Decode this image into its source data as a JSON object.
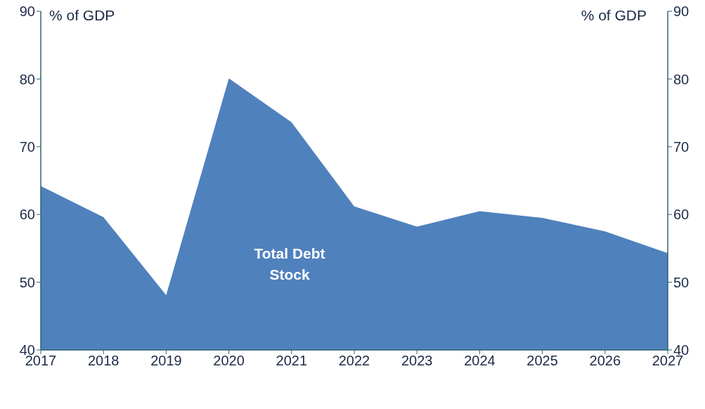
{
  "chart_data": {
    "type": "area",
    "ylabel": "% of GDP",
    "y2label": "% of GDP",
    "x": [
      2017,
      2018,
      2019,
      2020,
      2021,
      2022,
      2023,
      2024,
      2025,
      2026,
      2027
    ],
    "series": [
      {
        "color": "#4f81bd",
        "values": [
          64.2,
          59.6,
          48.1,
          80.1,
          73.6,
          61.2,
          58.2,
          60.5,
          59.5,
          57.5,
          54.3
        ]
      }
    ],
    "xlim": [
      2017,
      2027
    ],
    "xticks": [
      2017,
      2018,
      2019,
      2020,
      2021,
      2022,
      2023,
      2024,
      2025,
      2026,
      2027
    ],
    "ylim": [
      40,
      90
    ],
    "yticks": [
      40,
      50,
      60,
      70,
      80,
      90
    ],
    "y2lim": [
      40,
      90
    ],
    "y2ticks": [
      40,
      50,
      60,
      70,
      80,
      90
    ],
    "annotations": [
      "Total Debt Stock"
    ],
    "grid": false,
    "legend": false
  }
}
